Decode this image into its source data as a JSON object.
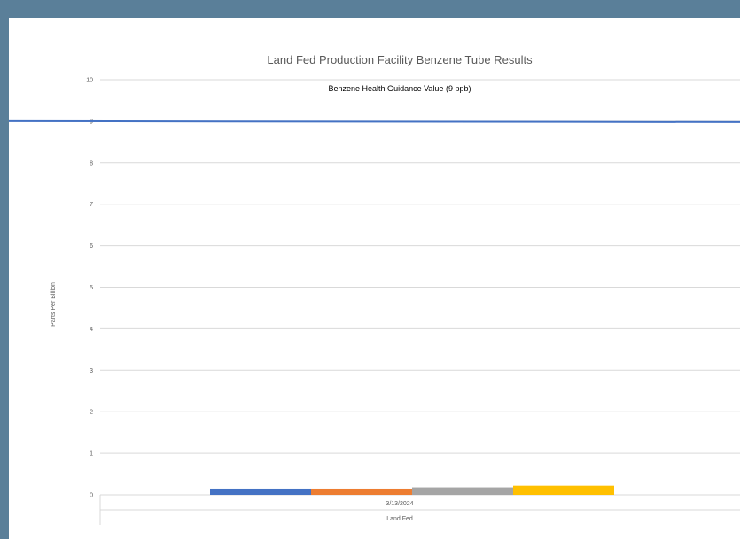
{
  "chart_data": {
    "type": "bar",
    "title": "Land Fed Production Facility Benzene Tube Results",
    "ylabel": "Parts Per Billion",
    "xlabel": "",
    "ylim": [
      0,
      10
    ],
    "yticks": [
      0,
      1,
      2,
      3,
      4,
      5,
      6,
      7,
      8,
      9,
      10
    ],
    "grid": true,
    "category_levels": {
      "date": "3/13/2024",
      "site": "Land Fed"
    },
    "series": [
      {
        "color": "#4472c4",
        "values": [
          0.15
        ]
      },
      {
        "color": "#ed7d31",
        "values": [
          0.15
        ]
      },
      {
        "color": "#a5a5a5",
        "values": [
          0.18
        ]
      },
      {
        "color": "#ffc000",
        "values": [
          0.22
        ]
      }
    ],
    "reference_line": {
      "label": "Benzene Health Guidance Value (9 ppb)",
      "value": 9,
      "color": "#4472c4"
    }
  }
}
